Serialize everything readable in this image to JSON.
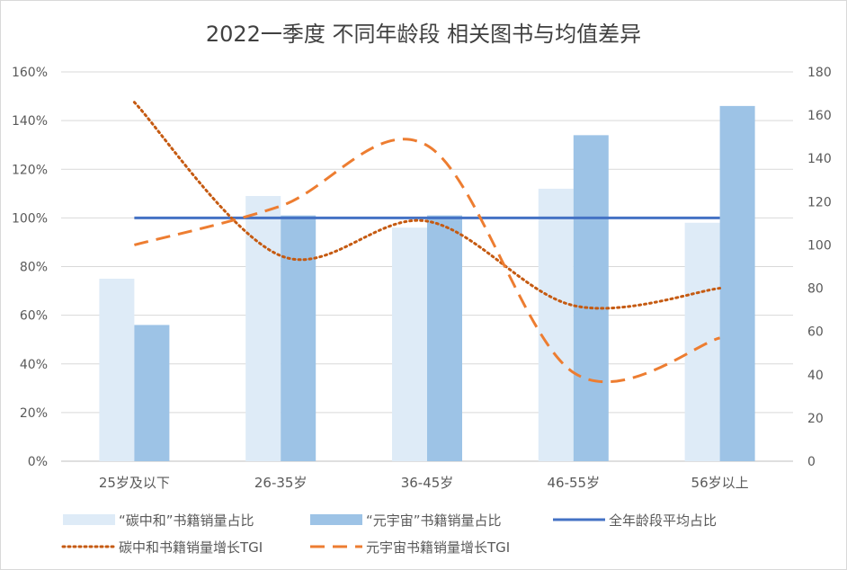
{
  "chart_data": {
    "type": "bar",
    "title": "2022一季度 不同年龄段 相关图书与均值差异",
    "categories": [
      "25岁及以下",
      "26-35岁",
      "36-45岁",
      "46-55岁",
      "56岁以上"
    ],
    "y_left": {
      "ticks": [
        "0%",
        "20%",
        "40%",
        "60%",
        "80%",
        "100%",
        "120%",
        "140%",
        "160%"
      ],
      "ylim": [
        0,
        1.6
      ]
    },
    "y_right": {
      "ticks": [
        "0",
        "20",
        "40",
        "60",
        "80",
        "100",
        "120",
        "140",
        "160",
        "180"
      ],
      "ylim": [
        0,
        180
      ]
    },
    "series": [
      {
        "name": "“碳中和”书籍销量占比",
        "kind": "bar",
        "axis": "left",
        "color": "#deebf7",
        "values": [
          0.75,
          1.09,
          0.96,
          1.12,
          0.98
        ]
      },
      {
        "name": "“元宇宙”书籍销量占比",
        "kind": "bar",
        "axis": "left",
        "color": "#9dc3e6",
        "values": [
          0.56,
          1.01,
          1.01,
          1.34,
          1.46
        ]
      },
      {
        "name": "全年龄段平均占比",
        "kind": "line",
        "axis": "left",
        "color": "#4472c4",
        "style": "solid",
        "values": [
          1.0,
          1.0,
          1.0,
          1.0,
          1.0
        ]
      },
      {
        "name": "碳中和书籍销量增长TGI",
        "kind": "line",
        "axis": "right",
        "color": "#c55a11",
        "style": "dotted",
        "values": [
          166,
          95,
          111,
          72,
          80
        ]
      },
      {
        "name": "元宇宙书籍销量增长TGI",
        "kind": "line",
        "axis": "right",
        "color": "#ed7d31",
        "style": "dashed",
        "values": [
          100,
          118,
          146,
          41,
          57
        ]
      }
    ],
    "grid": true,
    "legend_position": "bottom"
  }
}
